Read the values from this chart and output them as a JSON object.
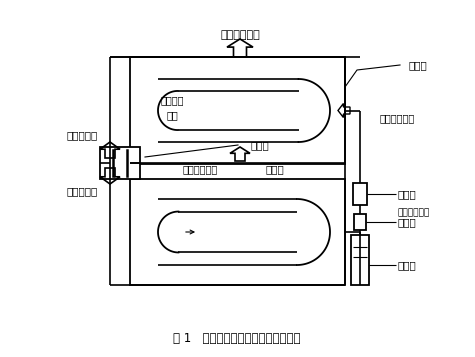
{
  "title": "图 1   汽车空调系统制冷剂循环回路图",
  "title_fontsize": 10,
  "bg_color": "#ffffff",
  "line_color": "#000000",
  "labels": {
    "top_outlet": "车内冷风出口",
    "evaporator": "蒸发器",
    "low_temp_gas": "低温低压\n气体",
    "low_temp_liquid": "低温低压液体",
    "low_side": "低温低压侧",
    "high_side": "高温高压侧",
    "compressor": "压缩机",
    "high_temp_gas": "高温高压气体",
    "condenser": "冷凝器",
    "expansion_valve": "膨胀阀",
    "sight_glass": "窥视镜",
    "high_temp_liquid": "高温高压液体",
    "dryer": "干燥器"
  },
  "font_size": 7.5,
  "arrow_color": "#000000"
}
